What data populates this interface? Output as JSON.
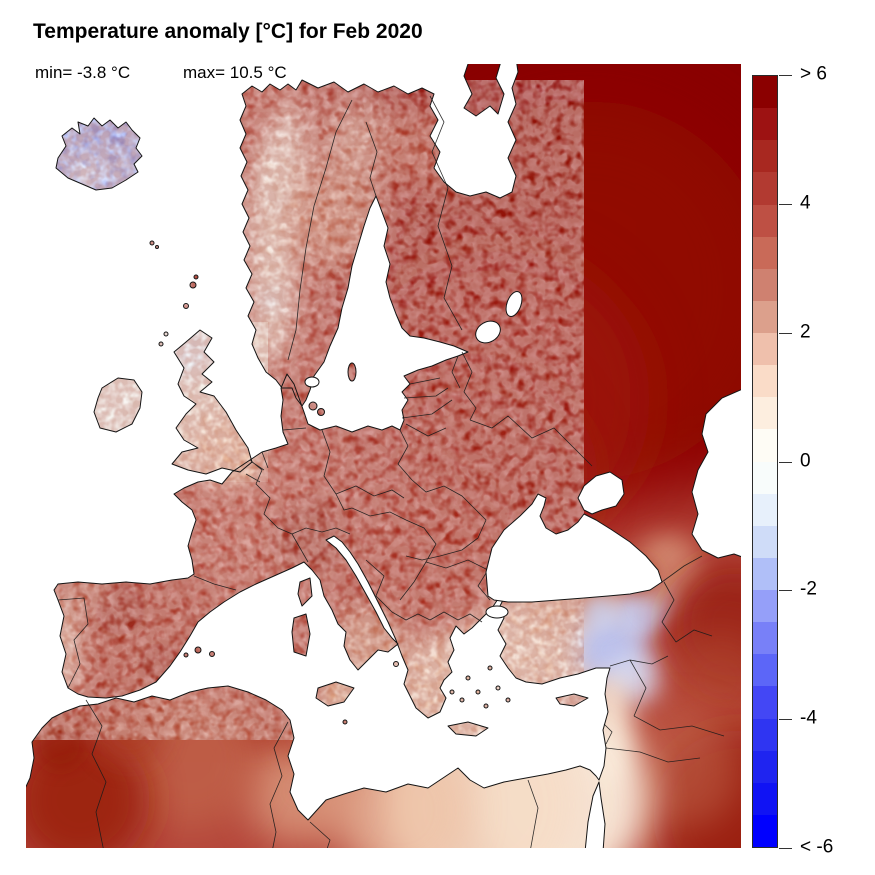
{
  "title": {
    "text": "Temperature anomaly [°C] for Feb 2020"
  },
  "stats": {
    "min_label": "min= -3.8 °C",
    "max_label": "max= 10.5 °C"
  },
  "colorbar": {
    "unit": "°C",
    "range_min": -6,
    "range_max": 6,
    "segment_step": 0.5,
    "ticks": [
      {
        "label": "> 6",
        "value": 6
      },
      {
        "label": "4",
        "value": 4
      },
      {
        "label": "2",
        "value": 2
      },
      {
        "label": "0",
        "value": 0
      },
      {
        "label": "-2",
        "value": -2
      },
      {
        "label": "-4",
        "value": -4
      },
      {
        "label": "< -6",
        "value": -6
      }
    ],
    "palette_top_to_bottom": [
      "#8B0000",
      "#9D1212",
      "#A82820",
      "#B23A31",
      "#BE5044",
      "#C96A58",
      "#CF8170",
      "#DCA08C",
      "#EFC0AC",
      "#FADCC8",
      "#FDEEDF",
      "#FEFCF5",
      "#F8FCFB",
      "#E7F0FB",
      "#CFDCF8",
      "#B0BFF8",
      "#959FF9",
      "#7880F8",
      "#5C66F8",
      "#4347F5",
      "#2F35F2",
      "#1F24F0",
      "#1013F4",
      "#0000FF"
    ]
  },
  "map": {
    "type": "choropleth-raster",
    "subject": "ERA-style 2m temperature anomaly over Europe",
    "sea_color": "#FFFFFF",
    "coastline_color": "#141414",
    "border_color": "#1b1b1b",
    "readings_degC": [
      {
        "region": "Iceland",
        "anomaly_c": -2
      },
      {
        "region": "Scotland",
        "anomaly_c": 0
      },
      {
        "region": "Ireland",
        "anomaly_c": 0.5
      },
      {
        "region": "England & Wales",
        "anomaly_c": 1.5
      },
      {
        "region": "France",
        "anomaly_c": 3.5
      },
      {
        "region": "Spain",
        "anomaly_c": 4.5
      },
      {
        "region": "Portugal coast",
        "anomaly_c": 1.5
      },
      {
        "region": "Germany & Poland",
        "anomaly_c": 4.5
      },
      {
        "region": "Norway mountains",
        "anomaly_c": 0.5
      },
      {
        "region": "Sweden",
        "anomaly_c": 3
      },
      {
        "region": "Finland",
        "anomaly_c": 5
      },
      {
        "region": "Northwest Russia",
        "anomaly_c": 6.5
      },
      {
        "region": "Baltics & Belarus",
        "anomaly_c": 5.5
      },
      {
        "region": "Ukraine",
        "anomaly_c": 5.5
      },
      {
        "region": "Alps",
        "anomaly_c": 3
      },
      {
        "region": "Italy",
        "anomaly_c": 3
      },
      {
        "region": "Balkans",
        "anomaly_c": 4.5
      },
      {
        "region": "Greece",
        "anomaly_c": 1.5
      },
      {
        "region": "Turkey (Anatolia)",
        "anomaly_c": 0.5
      },
      {
        "region": "Syria & N Iraq",
        "anomaly_c": -1.5
      },
      {
        "region": "Caucasus",
        "anomaly_c": 2
      },
      {
        "region": "NW Iran",
        "anomaly_c": 4.5
      },
      {
        "region": "Levant",
        "anomaly_c": 0.5
      },
      {
        "region": "Egypt & Libya",
        "anomaly_c": 1
      },
      {
        "region": "Algeria coast",
        "anomaly_c": 3
      },
      {
        "region": "Morocco",
        "anomaly_c": 4.5
      },
      {
        "region": "NE Arabia (bottom-right)",
        "anomaly_c": 4.5
      }
    ]
  }
}
